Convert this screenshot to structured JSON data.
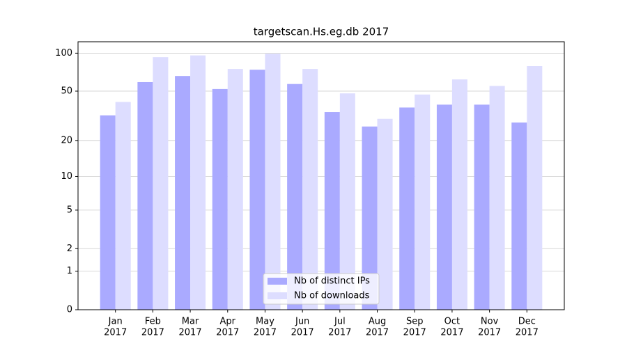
{
  "chart_data": {
    "type": "bar",
    "title": "targetscan.Hs.eg.db 2017",
    "categories": [
      [
        "Jan",
        "2017"
      ],
      [
        "Feb",
        "2017"
      ],
      [
        "Mar",
        "2017"
      ],
      [
        "Apr",
        "2017"
      ],
      [
        "May",
        "2017"
      ],
      [
        "Jun",
        "2017"
      ],
      [
        "Jul",
        "2017"
      ],
      [
        "Aug",
        "2017"
      ],
      [
        "Sep",
        "2017"
      ],
      [
        "Oct",
        "2017"
      ],
      [
        "Nov",
        "2017"
      ],
      [
        "Dec",
        "2017"
      ]
    ],
    "series": [
      {
        "name": "Nb of distinct IPs",
        "color": "#aaaaff",
        "values": [
          32,
          59,
          66,
          52,
          74,
          57,
          34,
          26,
          37,
          39,
          39,
          28
        ]
      },
      {
        "name": "Nb of downloads",
        "color": "#ddddff",
        "values": [
          41,
          93,
          96,
          75,
          99,
          75,
          48,
          30,
          47,
          62,
          55,
          79
        ]
      }
    ],
    "ylim": [
      0,
      123
    ],
    "yticks": [
      0,
      1,
      2,
      5,
      10,
      20,
      50,
      100
    ],
    "y_scale": "log1p",
    "grid": true,
    "legend": "lower center"
  }
}
